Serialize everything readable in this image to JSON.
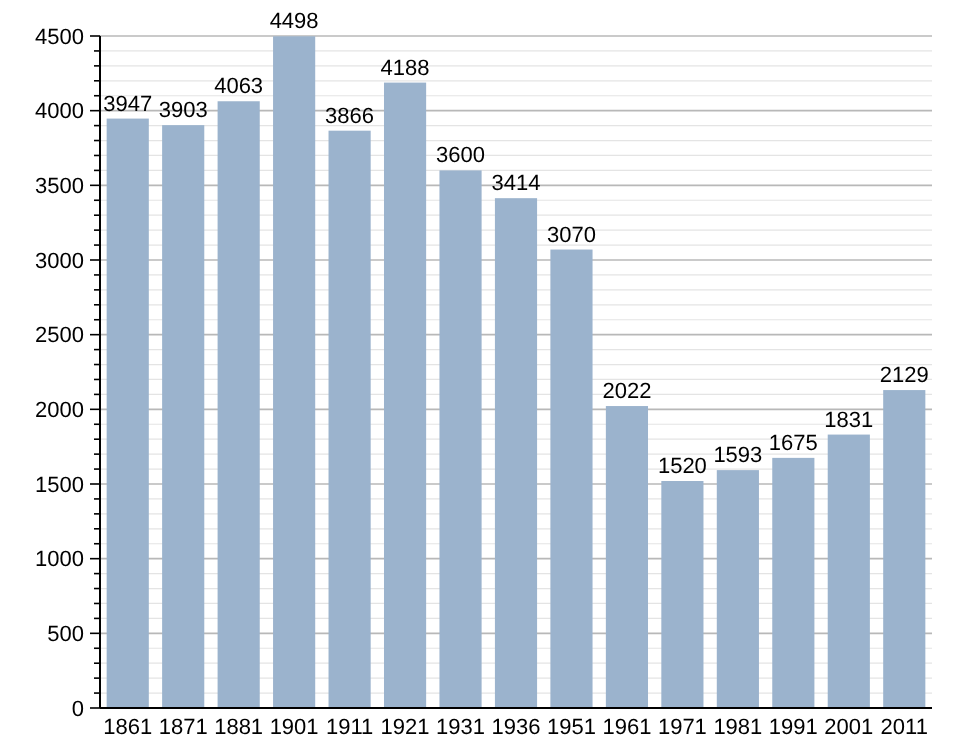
{
  "chart_data": {
    "type": "bar",
    "categories": [
      "1861",
      "1871",
      "1881",
      "1901",
      "1911",
      "1921",
      "1931",
      "1936",
      "1951",
      "1961",
      "1971",
      "1981",
      "1991",
      "2001",
      "2011"
    ],
    "values": [
      3947,
      3903,
      4063,
      4498,
      3866,
      4188,
      3600,
      3414,
      3070,
      2022,
      1520,
      1593,
      1675,
      1831,
      2129
    ],
    "color": "#9bb3cd",
    "ylim": [
      0,
      4500
    ],
    "yticks": [
      0,
      {
        "value": 100,
        "label": null
      },
      {
        "value": 200,
        "label": null
      },
      {
        "value": 300,
        "label": null
      },
      {
        "value": 400,
        "label": null
      },
      500,
      {
        "value": 600,
        "label": null
      },
      {
        "value": 700,
        "label": null
      },
      {
        "value": 800,
        "label": null
      },
      {
        "value": 900,
        "label": null
      },
      1000,
      {
        "value": 1100,
        "label": null
      },
      {
        "value": 1200,
        "label": null
      },
      {
        "value": 1300,
        "label": null
      },
      {
        "value": 1400,
        "label": null
      },
      1500,
      {
        "value": 1600,
        "label": null
      },
      {
        "value": 1700,
        "label": null
      },
      {
        "value": 1800,
        "label": null
      },
      {
        "value": 1900,
        "label": null
      },
      2000,
      {
        "value": 2100,
        "label": null
      },
      {
        "value": 2200,
        "label": null
      },
      {
        "value": 2300,
        "label": null
      },
      {
        "value": 2400,
        "label": null
      },
      2500,
      {
        "value": 2600,
        "label": null
      },
      {
        "value": 2700,
        "label": null
      },
      {
        "value": 2800,
        "label": null
      },
      {
        "value": 2900,
        "label": null
      },
      3000,
      {
        "value": 3100,
        "label": null
      },
      {
        "value": 3200,
        "label": null
      },
      {
        "value": 3300,
        "label": null
      },
      {
        "value": 3400,
        "label": null
      },
      3500,
      {
        "value": 3600,
        "label": null
      },
      {
        "value": 3700,
        "label": null
      },
      {
        "value": 3800,
        "label": null
      },
      {
        "value": 3900,
        "label": null
      },
      4000,
      {
        "value": 4100,
        "label": null
      },
      {
        "value": 4200,
        "label": null
      },
      {
        "value": 4300,
        "label": null
      },
      {
        "value": 4400,
        "label": null
      },
      4500
    ],
    "grid": "y",
    "data_labels": true
  }
}
